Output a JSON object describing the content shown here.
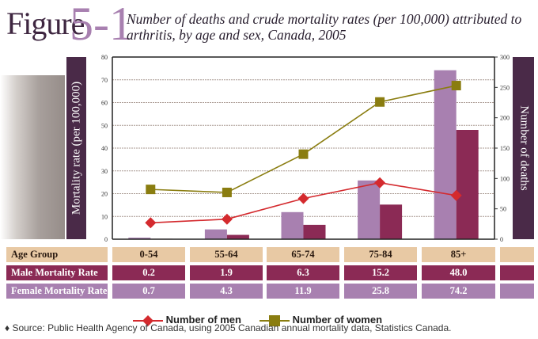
{
  "figure": {
    "label": "Figure",
    "number": "5-1",
    "title": "Number of deaths and crude mortality rates (per 100,000) attributed to arthritis, by age and sex, Canada, 2005"
  },
  "chart_data": {
    "type": "bar+line",
    "title": "Number of deaths and crude mortality rates (per 100,000) attributed to arthritis, by age and sex, Canada, 2005",
    "categories": [
      "0-54",
      "55-64",
      "65-74",
      "75-84",
      "85+"
    ],
    "ylabel": "Mortality rate (per 100,000)",
    "y2label": "Number of deaths",
    "ylim": [
      0,
      80
    ],
    "y2lim": [
      0,
      300
    ],
    "yticks": [
      "0",
      "10",
      "20",
      "30",
      "40",
      "50",
      "60",
      "70",
      "80"
    ],
    "y2ticks": [
      "0",
      "50",
      "100",
      "150",
      "200",
      "250",
      "300"
    ],
    "grid": true,
    "bar_series": [
      {
        "name": "Female Mortality Rate",
        "values": [
          0.7,
          4.3,
          11.9,
          25.8,
          74.2
        ],
        "color": "#a880b0"
      },
      {
        "name": "Male Mortality Rate",
        "values": [
          0.2,
          1.9,
          6.3,
          15.2,
          48.0
        ],
        "color": "#8b2a55"
      }
    ],
    "line_series": [
      {
        "name": "Number of men",
        "values": [
          27,
          33,
          67,
          93,
          72
        ],
        "color": "#d42a2e",
        "marker": "diamond",
        "axis": "right"
      },
      {
        "name": "Number of women",
        "values": [
          82,
          77,
          140,
          226,
          253
        ],
        "color": "#8a7d10",
        "marker": "square",
        "axis": "right"
      }
    ],
    "legend_placement": "bottom"
  },
  "table": {
    "rows": [
      {
        "label": "Age Group",
        "cells": [
          "0-54",
          "55-64",
          "65-74",
          "75-84",
          "85+",
          ""
        ],
        "bg": "#e8c9a4",
        "fg": "#2a1a10"
      },
      {
        "label": "Male Mortality Rate",
        "cells": [
          "0.2",
          "1.9",
          "6.3",
          "15.2",
          "48.0",
          ""
        ],
        "bg": "#8b2a55",
        "fg": "#ffffff"
      },
      {
        "label": "Female Mortality Rate",
        "cells": [
          "0.7",
          "4.3",
          "11.9",
          "25.8",
          "74.2",
          ""
        ],
        "bg": "#a880b0",
        "fg": "#ffffff"
      }
    ]
  },
  "legend": {
    "men": "Number of men",
    "women": "Number of women"
  },
  "source": "♦ Source: Public Health Agency of Canada, using 2005 Canadian annual mortality data, Statistics Canada."
}
